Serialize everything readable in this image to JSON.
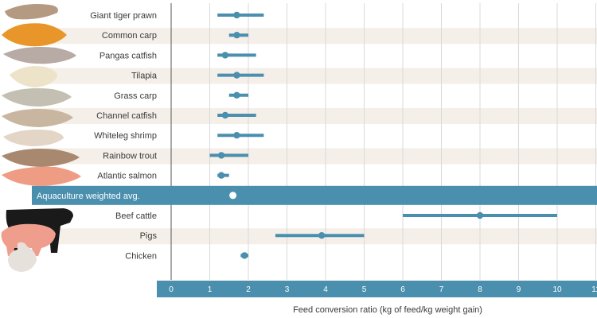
{
  "chart_data": {
    "type": "dot-range",
    "categories": [
      "Giant tiger prawn",
      "Common carp",
      "Pangas catfish",
      "Tilapia",
      "Grass carp",
      "Channel catfish",
      "Whiteleg shrimp",
      "Rainbow trout",
      "Atlantic salmon",
      "Aquaculture weighted avg.",
      "Beef cattle",
      "Pigs",
      "Chicken"
    ],
    "values": [
      1.7,
      1.7,
      1.4,
      1.7,
      1.7,
      1.4,
      1.7,
      1.3,
      1.3,
      1.6,
      8.0,
      3.9,
      1.9
    ],
    "low": [
      1.2,
      1.5,
      1.2,
      1.2,
      1.5,
      1.2,
      1.2,
      1.0,
      1.2,
      null,
      6.0,
      2.7,
      1.8
    ],
    "high": [
      2.4,
      2.0,
      2.2,
      2.4,
      2.0,
      2.2,
      2.4,
      2.0,
      1.5,
      null,
      10.0,
      5.0,
      2.0
    ],
    "highlight_category": "Aquaculture weighted avg.",
    "xlim": [
      0,
      11
    ],
    "xticks": [
      "0",
      "1",
      "2",
      "3",
      "4",
      "5",
      "6",
      "7",
      "8",
      "9",
      "10",
      "11"
    ],
    "xlabel": "Feed conversion ratio (kg of feed/kg weight gain)",
    "colors": {
      "mark": "#4a8fad",
      "highlight_band": "#4a8fad",
      "axis_band": "#4a8fad",
      "stripe": "#f5efe9",
      "grid": "#d9d9d9"
    }
  },
  "icons": [
    "prawn-icon",
    "carp-icon",
    "catfish-icon",
    "tilapia-icon",
    "grass-carp-icon",
    "channel-catfish-icon",
    "shrimp-icon",
    "trout-icon",
    "salmon-icon",
    "cow-icon",
    "pig-icon",
    "chicken-icon"
  ]
}
